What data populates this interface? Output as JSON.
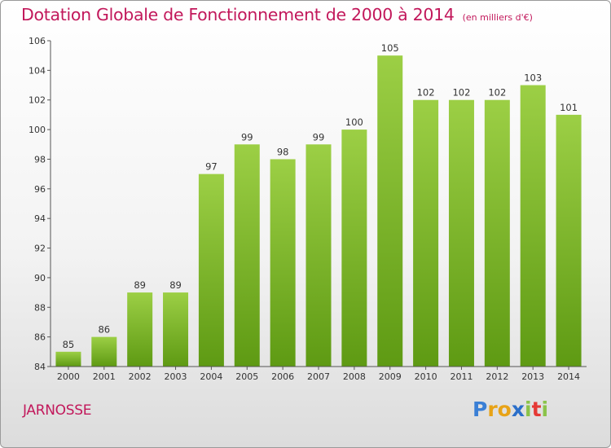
{
  "header": {
    "title": "Dotation Globale de Fonctionnement de 2000 à 2014",
    "unit": "(en milliers d'€)"
  },
  "footer": {
    "commune": "JARNOSSE",
    "brand_letters": [
      "P",
      "r",
      "o",
      "x",
      "i",
      "t",
      "i"
    ],
    "brand_colors": [
      "#3a7fd5",
      "#e8a317",
      "#e8a317",
      "#2b6fc9",
      "#8bc34a",
      "#e53935",
      "#8bc34a"
    ]
  },
  "chart_data": {
    "type": "bar",
    "title": "Dotation Globale de Fonctionnement de 2000 à 2014",
    "subtitle": "(en milliers d'€)",
    "categories": [
      "2000",
      "2001",
      "2002",
      "2003",
      "2004",
      "2005",
      "2006",
      "2007",
      "2008",
      "2009",
      "2010",
      "2011",
      "2012",
      "2013",
      "2014"
    ],
    "values": [
      85,
      86,
      89,
      89,
      97,
      99,
      98,
      99,
      100,
      105,
      102,
      102,
      102,
      103,
      101
    ],
    "ylim": [
      84,
      106
    ],
    "yticks": [
      84,
      86,
      88,
      90,
      92,
      94,
      96,
      98,
      100,
      102,
      104,
      106
    ],
    "grid": false,
    "colors": {
      "bar_top": "#9ccf45",
      "bar_bottom": "#5e9a13",
      "axis": "#555555"
    }
  }
}
